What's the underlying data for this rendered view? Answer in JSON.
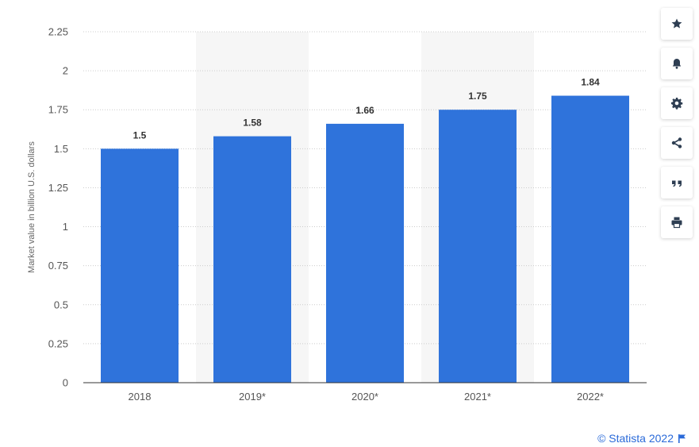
{
  "chart_data": {
    "type": "bar",
    "categories": [
      "2018",
      "2019*",
      "2020*",
      "2021*",
      "2022*"
    ],
    "values": [
      1.5,
      1.58,
      1.66,
      1.75,
      1.84
    ],
    "value_labels": [
      "1.5",
      "1.58",
      "1.66",
      "1.75",
      "1.84"
    ],
    "ylabel": "Market value in billion U.S. dollars",
    "ylim": [
      0,
      2.25
    ],
    "yticks": [
      0,
      0.25,
      0.5,
      0.75,
      1,
      1.25,
      1.5,
      1.75,
      2,
      2.25
    ],
    "ytick_labels": [
      "0",
      "0.25",
      "0.5",
      "0.75",
      "1",
      "1.25",
      "1.5",
      "1.75",
      "2",
      "2.25"
    ],
    "grid": true,
    "bar_color": "#2f73db",
    "alt_band_color": "#f6f6f6",
    "grid_color": "#cccccc"
  },
  "toolbar": {
    "buttons": [
      {
        "name": "favorite-button",
        "icon": "star-icon"
      },
      {
        "name": "notification-button",
        "icon": "bell-icon"
      },
      {
        "name": "settings-button",
        "icon": "gear-icon"
      },
      {
        "name": "share-button",
        "icon": "share-icon"
      },
      {
        "name": "cite-button",
        "icon": "quote-icon"
      },
      {
        "name": "print-button",
        "icon": "printer-icon"
      }
    ],
    "icon_color": "#2e3e52"
  },
  "credit": {
    "text": "© Statista 2022",
    "color": "#2a6ad9"
  }
}
